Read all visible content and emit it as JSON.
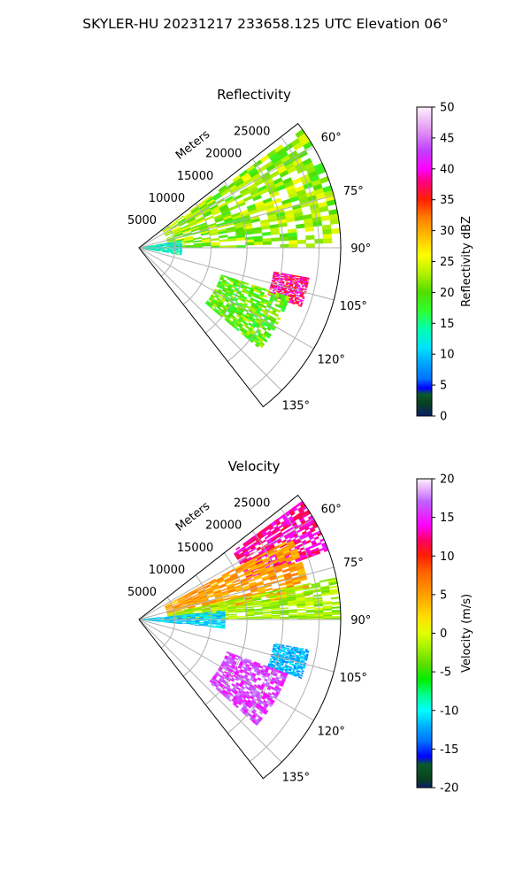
{
  "suptitle": "SKYLER-HU  20231217  233658.125 UTC Elevation 06°",
  "chart_data": [
    {
      "type": "heatmap",
      "subtype": "polar-sector-radar-ppi",
      "title": "Reflectivity",
      "radial_label": "Meters",
      "azimuth_range_deg": [
        52,
        142
      ],
      "azimuth_ticks": [
        "60°",
        "75°",
        "90°",
        "105°",
        "120°",
        "135°"
      ],
      "range_m": [
        0,
        28000
      ],
      "range_ticks": [
        "5000",
        "10000",
        "15000",
        "20000",
        "25000"
      ],
      "grid": true,
      "colorbar": {
        "label": "Reflectivity dBZ",
        "min": 0,
        "max": 50,
        "ticks": [
          "0",
          "5",
          "10",
          "15",
          "20",
          "25",
          "30",
          "35",
          "40",
          "45",
          "50"
        ]
      },
      "features": [
        {
          "description": "broad stratiform echo",
          "az_deg": [
            54,
            90
          ],
          "range_m": [
            4000,
            28000
          ],
          "value": 22
        },
        {
          "description": "convective cell",
          "az_deg": [
            100,
            110
          ],
          "range_m": [
            19000,
            24000
          ],
          "value": 38
        },
        {
          "description": "cell trail",
          "az_deg": [
            108,
            130
          ],
          "range_m": [
            12000,
            22000
          ],
          "value": 20
        },
        {
          "description": "near-radar weak echo",
          "az_deg": [
            80,
            100
          ],
          "range_m": [
            0,
            6000
          ],
          "value": 13
        }
      ]
    },
    {
      "type": "heatmap",
      "subtype": "polar-sector-radar-ppi",
      "title": "Velocity",
      "radial_label": "Meters",
      "azimuth_range_deg": [
        52,
        142
      ],
      "azimuth_ticks": [
        "60°",
        "75°",
        "90°",
        "105°",
        "120°",
        "135°"
      ],
      "range_m": [
        0,
        28000
      ],
      "range_ticks": [
        "5000",
        "10000",
        "15000",
        "20000",
        "25000"
      ],
      "grid": true,
      "colorbar": {
        "label": "Velocity (m/s)",
        "min": -20,
        "max": 20,
        "ticks": [
          "-20",
          "-15",
          "-10",
          "-5",
          "0",
          "5",
          "10",
          "15",
          "20"
        ]
      },
      "features": [
        {
          "description": "outbound far field",
          "az_deg": [
            54,
            70
          ],
          "range_m": [
            16000,
            28000
          ],
          "value": 13
        },
        {
          "description": "outbound mid field",
          "az_deg": [
            62,
            82
          ],
          "range_m": [
            4000,
            24000
          ],
          "value": 5
        },
        {
          "description": "near-zero band",
          "az_deg": [
            78,
            90
          ],
          "range_m": [
            4000,
            28000
          ],
          "value": -2
        },
        {
          "description": "inbound near radar",
          "az_deg": [
            84,
            96
          ],
          "range_m": [
            0,
            12000
          ],
          "value": -11
        },
        {
          "description": "inbound cell",
          "az_deg": [
            100,
            110
          ],
          "range_m": [
            19000,
            24000
          ],
          "value": -12
        },
        {
          "description": "outbound cell trail",
          "az_deg": [
            110,
            132
          ],
          "range_m": [
            13000,
            22000
          ],
          "value": 16
        }
      ]
    }
  ]
}
